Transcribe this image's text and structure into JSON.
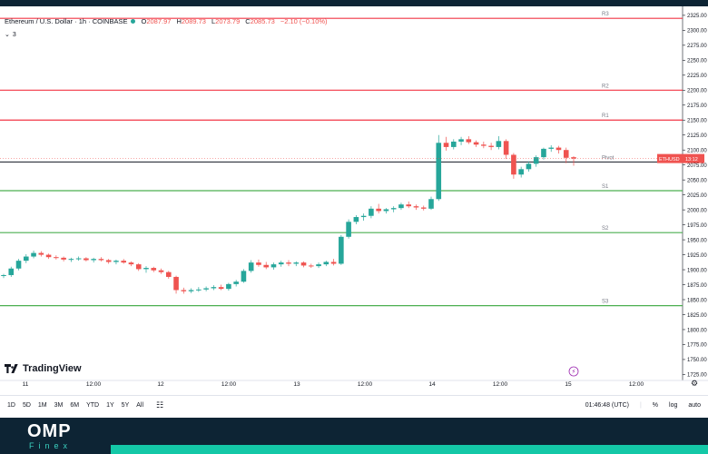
{
  "legend": {
    "symbol": "Ethereum / U.S. Dollar · 1h · COINBASE",
    "open_label": "O",
    "open": "2087.97",
    "high_label": "H",
    "high": "2089.73",
    "low_label": "L",
    "low": "2073.79",
    "close_label": "C",
    "close": "2085.73",
    "change": "−2.10 (−0.10%)"
  },
  "indicator_collapse": {
    "label": "3"
  },
  "price_badge": {
    "symbol": "ETHUSD",
    "countdown": "13:12"
  },
  "pivot_labels": [
    "R3",
    "R2",
    "R1",
    "Pivot",
    "S1",
    "S2",
    "S3"
  ],
  "x_axis_labels": [
    "11",
    "12:00",
    "12",
    "12:00",
    "13",
    "12:00",
    "14",
    "12:00",
    "15",
    "12:00"
  ],
  "y_axis_labels": [
    "2325.00",
    "2300.00",
    "2275.00",
    "2250.00",
    "2225.00",
    "2200.00",
    "2175.00",
    "2150.00",
    "2125.00",
    "2100.00",
    "2075.00",
    "2050.00",
    "2025.00",
    "2000.00",
    "1975.00",
    "1950.00",
    "1925.00",
    "1900.00",
    "1875.00",
    "1850.00",
    "1825.00",
    "1800.00",
    "1775.00",
    "1750.00",
    "1725.00"
  ],
  "logo": "TradingView",
  "bottom_bar": {
    "ranges": [
      "1D",
      "5D",
      "1M",
      "3M",
      "6M",
      "YTD",
      "1Y",
      "5Y",
      "All"
    ],
    "time": "01:46:48 (UTC)",
    "percent": "%",
    "log": "log",
    "auto": "auto"
  },
  "footer": {
    "brand": "OMP",
    "sub": "Finex"
  },
  "colors": {
    "up": "#26a69a",
    "down": "#ef5350",
    "resistance": "#f23645",
    "support": "#4caf50",
    "pivot": "#131722"
  },
  "chart_data": {
    "type": "candlestick",
    "pivot_levels": {
      "R3": 2320,
      "R2": 2200,
      "R1": 2150,
      "Pivot": 2080,
      "S1": 2032,
      "S2": 1962,
      "S3": 1840
    },
    "candles": [
      [
        1890,
        1893,
        1886,
        1891
      ],
      [
        1891,
        1905,
        1888,
        1902
      ],
      [
        1902,
        1918,
        1899,
        1915
      ],
      [
        1915,
        1926,
        1911,
        1922
      ],
      [
        1922,
        1932,
        1919,
        1928
      ],
      [
        1928,
        1931,
        1922,
        1925
      ],
      [
        1925,
        1927,
        1918,
        1921
      ],
      [
        1921,
        1924,
        1917,
        1920
      ],
      [
        1920,
        1922,
        1914,
        1917
      ],
      [
        1917,
        1920,
        1913,
        1918
      ],
      [
        1918,
        1922,
        1915,
        1919
      ],
      [
        1919,
        1921,
        1914,
        1916
      ],
      [
        1916,
        1920,
        1912,
        1918
      ],
      [
        1918,
        1921,
        1914,
        1916
      ],
      [
        1916,
        1918,
        1910,
        1913
      ],
      [
        1913,
        1917,
        1909,
        1915
      ],
      [
        1915,
        1918,
        1910,
        1912
      ],
      [
        1912,
        1914,
        1906,
        1909
      ],
      [
        1909,
        1911,
        1898,
        1901
      ],
      [
        1901,
        1906,
        1895,
        1903
      ],
      [
        1903,
        1905,
        1896,
        1899
      ],
      [
        1899,
        1902,
        1893,
        1896
      ],
      [
        1896,
        1898,
        1885,
        1888
      ],
      [
        1888,
        1890,
        1860,
        1866
      ],
      [
        1866,
        1870,
        1860,
        1864
      ],
      [
        1864,
        1869,
        1861,
        1866
      ],
      [
        1866,
        1871,
        1863,
        1867
      ],
      [
        1867,
        1872,
        1864,
        1869
      ],
      [
        1869,
        1874,
        1866,
        1871
      ],
      [
        1871,
        1875,
        1866,
        1868
      ],
      [
        1868,
        1878,
        1865,
        1876
      ],
      [
        1876,
        1883,
        1872,
        1880
      ],
      [
        1880,
        1901,
        1878,
        1898
      ],
      [
        1898,
        1916,
        1895,
        1912
      ],
      [
        1912,
        1917,
        1905,
        1908
      ],
      [
        1908,
        1913,
        1901,
        1904
      ],
      [
        1904,
        1912,
        1900,
        1909
      ],
      [
        1909,
        1915,
        1905,
        1912
      ],
      [
        1912,
        1916,
        1906,
        1910
      ],
      [
        1910,
        1914,
        1906,
        1912
      ],
      [
        1912,
        1914,
        1904,
        1907
      ],
      [
        1907,
        1910,
        1903,
        1906
      ],
      [
        1906,
        1912,
        1903,
        1909
      ],
      [
        1909,
        1915,
        1906,
        1913
      ],
      [
        1913,
        1918,
        1907,
        1910
      ],
      [
        1910,
        1958,
        1908,
        1955
      ],
      [
        1955,
        1984,
        1952,
        1980
      ],
      [
        1980,
        1991,
        1976,
        1988
      ],
      [
        1988,
        1994,
        1982,
        1990
      ],
      [
        1990,
        2006,
        1986,
        2002
      ],
      [
        2002,
        2010,
        1994,
        1998
      ],
      [
        1998,
        2003,
        1994,
        2001
      ],
      [
        2001,
        2006,
        1996,
        2003
      ],
      [
        2003,
        2012,
        2000,
        2009
      ],
      [
        2009,
        2014,
        2003,
        2006
      ],
      [
        2006,
        2009,
        2000,
        2004
      ],
      [
        2004,
        2007,
        1999,
        2002
      ],
      [
        2002,
        2022,
        2000,
        2018
      ],
      [
        2018,
        2125,
        2015,
        2112
      ],
      [
        2112,
        2122,
        2099,
        2105
      ],
      [
        2105,
        2118,
        2101,
        2114
      ],
      [
        2114,
        2122,
        2108,
        2118
      ],
      [
        2118,
        2123,
        2110,
        2113
      ],
      [
        2113,
        2116,
        2105,
        2109
      ],
      [
        2109,
        2114,
        2103,
        2107
      ],
      [
        2107,
        2112,
        2100,
        2105
      ],
      [
        2105,
        2123,
        2101,
        2115
      ],
      [
        2115,
        2118,
        2085,
        2092
      ],
      [
        2092,
        2095,
        2052,
        2059
      ],
      [
        2059,
        2072,
        2054,
        2068
      ],
      [
        2068,
        2081,
        2064,
        2077
      ],
      [
        2077,
        2091,
        2072,
        2088
      ],
      [
        2088,
        2104,
        2084,
        2102
      ],
      [
        2102,
        2108,
        2097,
        2104
      ],
      [
        2104,
        2107,
        2094,
        2100
      ],
      [
        2100,
        2104,
        2078,
        2087
      ],
      [
        2087.97,
        2089.73,
        2073.79,
        2085.73
      ]
    ]
  }
}
